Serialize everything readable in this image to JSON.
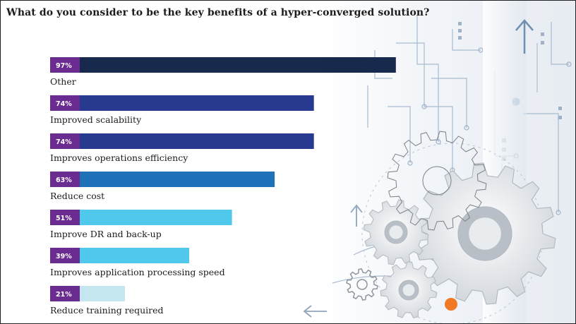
{
  "title": "What do you consider to be the key benefits of a hyper-converged solution?",
  "chart_data": {
    "type": "bar",
    "orientation": "horizontal",
    "title": "What do you consider to be the key benefits of a hyper-converged solution?",
    "categories": [
      "Other",
      "Improved scalability",
      "Improves operations efficiency",
      "Reduce cost",
      "Improve DR and back-up",
      "Improves application processing speed",
      "Reduce training required"
    ],
    "values": [
      97,
      74,
      74,
      63,
      51,
      39,
      21
    ],
    "value_labels": [
      "97%",
      "74%",
      "74%",
      "63%",
      "51%",
      "39%",
      "21%"
    ],
    "bar_colors": [
      "#172a4e",
      "#283a90",
      "#283a90",
      "#1f72b8",
      "#4fc8ec",
      "#4fc8ec",
      "#c4e6ef"
    ],
    "badge_color": "#6a2c91",
    "xlim": [
      0,
      100
    ],
    "unit": "%"
  },
  "colors": {
    "title_text": "#1b1b1b",
    "gear_light": "#eef0f3",
    "gear_dark": "#8f959b",
    "circuit": "#9fb2c8",
    "accent_dot": "#f07a24"
  }
}
